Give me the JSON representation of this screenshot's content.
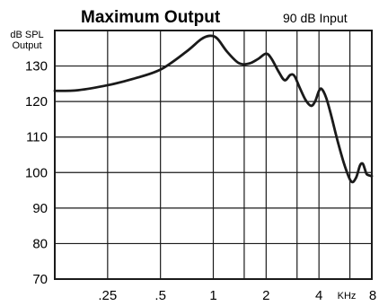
{
  "chart_data": {
    "type": "line",
    "title": "Maximum Output",
    "subtitle": "90 dB Input",
    "ylabel_line1": "dB SPL",
    "ylabel_line2": "Output",
    "xunit": "KHz",
    "x_scale": "log",
    "xlim": [
      0.125,
      8
    ],
    "ylim": [
      70,
      140
    ],
    "grid": true,
    "y_ticks": [
      {
        "value": 130,
        "label": "130"
      },
      {
        "value": 120,
        "label": "120"
      },
      {
        "value": 110,
        "label": "110"
      },
      {
        "value": 100,
        "label": "100"
      },
      {
        "value": 90,
        "label": "90"
      },
      {
        "value": 80,
        "label": "80"
      },
      {
        "value": 70,
        "label": "70"
      }
    ],
    "x_ticks": [
      {
        "value": 0.25,
        "label": ".25"
      },
      {
        "value": 0.5,
        "label": ".5"
      },
      {
        "value": 1,
        "label": "1"
      },
      {
        "value": 2,
        "label": "2"
      },
      {
        "value": 4,
        "label": "4"
      },
      {
        "value": 8,
        "label": "8"
      }
    ],
    "x_minor_grid": [
      1.5,
      3,
      6
    ],
    "series": [
      {
        "points": [
          [
            0.125,
            123
          ],
          [
            0.17,
            123.2
          ],
          [
            0.25,
            124.6
          ],
          [
            0.35,
            126.4
          ],
          [
            0.5,
            129
          ],
          [
            0.7,
            134
          ],
          [
            0.85,
            137.5
          ],
          [
            0.95,
            138.5
          ],
          [
            1.05,
            137.8
          ],
          [
            1.2,
            134
          ],
          [
            1.4,
            130.8
          ],
          [
            1.6,
            130.7
          ],
          [
            1.8,
            132
          ],
          [
            2.0,
            133.5
          ],
          [
            2.15,
            132
          ],
          [
            2.35,
            128.5
          ],
          [
            2.55,
            126
          ],
          [
            2.75,
            127.5
          ],
          [
            2.9,
            127.2
          ],
          [
            3.1,
            124
          ],
          [
            3.35,
            120.5
          ],
          [
            3.6,
            118.8
          ],
          [
            3.8,
            120
          ],
          [
            4.0,
            123
          ],
          [
            4.15,
            123.5
          ],
          [
            4.4,
            121
          ],
          [
            4.7,
            116
          ],
          [
            5.1,
            109
          ],
          [
            5.6,
            102
          ],
          [
            6.1,
            97.5
          ],
          [
            6.5,
            98.5
          ],
          [
            6.85,
            102
          ],
          [
            7.1,
            102.5
          ],
          [
            7.3,
            101
          ],
          [
            7.5,
            99.5
          ],
          [
            8.0,
            99
          ]
        ]
      }
    ]
  }
}
